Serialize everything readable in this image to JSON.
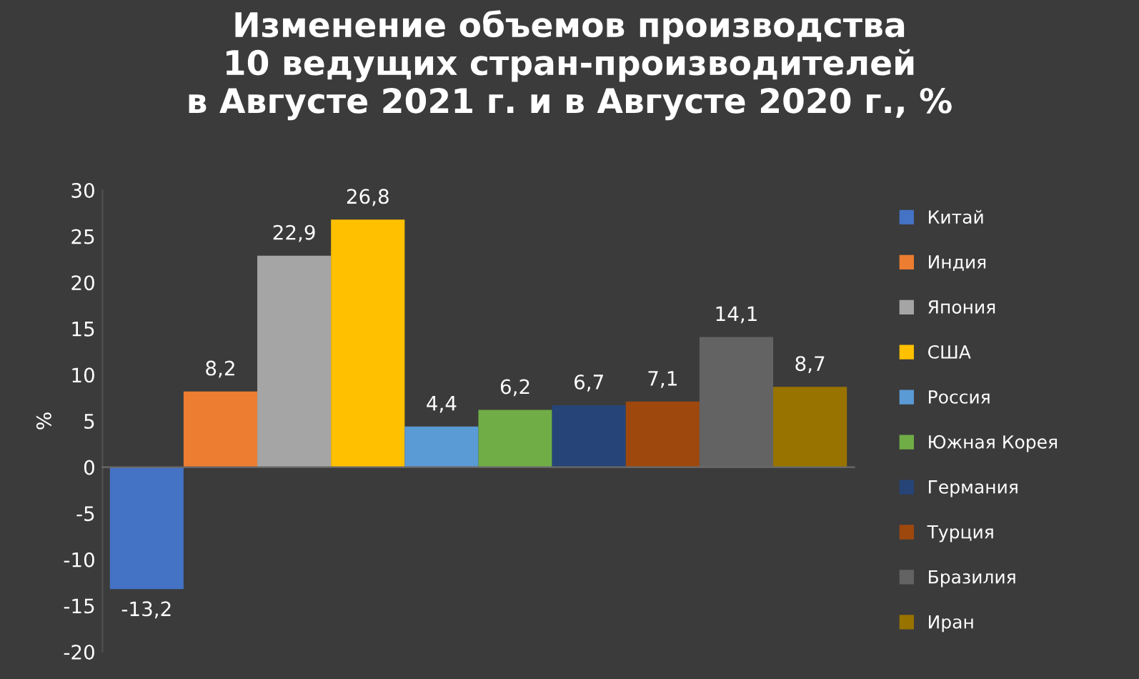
{
  "chart_data": {
    "type": "bar",
    "title": "Изменение объемов производства\n10 ведущих стран-производителей\nв Августе 2021 г. и в Августе 2020 г., %",
    "ylabel": "%",
    "categories": [
      null,
      null,
      null,
      null,
      null,
      null,
      null,
      null,
      null,
      null
    ],
    "series": [
      {
        "name": "Китай",
        "color": "#4472c4",
        "values": [
          -13.2,
          null,
          null,
          null,
          null,
          null,
          null,
          null,
          null,
          null
        ],
        "value_labels": [
          "-13,2",
          null,
          null,
          null,
          null,
          null,
          null,
          null,
          null,
          null
        ]
      },
      {
        "name": "Индия",
        "color": "#ed7d31",
        "values": [
          null,
          8.2,
          null,
          null,
          null,
          null,
          null,
          null,
          null,
          null
        ],
        "value_labels": [
          null,
          "8,2",
          null,
          null,
          null,
          null,
          null,
          null,
          null,
          null
        ]
      },
      {
        "name": "Япония",
        "color": "#a5a5a5",
        "values": [
          null,
          null,
          22.9,
          null,
          null,
          null,
          null,
          null,
          null,
          null
        ],
        "value_labels": [
          null,
          null,
          "22,9",
          null,
          null,
          null,
          null,
          null,
          null,
          null
        ]
      },
      {
        "name": "США",
        "color": "#ffc000",
        "values": [
          null,
          null,
          null,
          26.8,
          null,
          null,
          null,
          null,
          null,
          null
        ],
        "value_labels": [
          null,
          null,
          null,
          "26,8",
          null,
          null,
          null,
          null,
          null,
          null
        ]
      },
      {
        "name": "Россия",
        "color": "#5b9bd5",
        "values": [
          null,
          null,
          null,
          null,
          4.4,
          null,
          null,
          null,
          null,
          null
        ],
        "value_labels": [
          null,
          null,
          null,
          null,
          "4,4",
          null,
          null,
          null,
          null,
          null
        ]
      },
      {
        "name": "Южная Корея",
        "color": "#70ad47",
        "values": [
          null,
          null,
          null,
          null,
          null,
          6.2,
          null,
          null,
          null,
          null
        ],
        "value_labels": [
          null,
          null,
          null,
          null,
          null,
          "6,2",
          null,
          null,
          null,
          null
        ]
      },
      {
        "name": "Германия",
        "color": "#264478",
        "values": [
          null,
          null,
          null,
          null,
          null,
          null,
          6.7,
          null,
          null,
          null
        ],
        "value_labels": [
          null,
          null,
          null,
          null,
          null,
          null,
          "6,7",
          null,
          null,
          null
        ]
      },
      {
        "name": "Турция",
        "color": "#9e480e",
        "values": [
          null,
          null,
          null,
          null,
          null,
          null,
          null,
          7.1,
          null,
          null
        ],
        "value_labels": [
          null,
          null,
          null,
          null,
          null,
          null,
          null,
          "7,1",
          null,
          null
        ]
      },
      {
        "name": "Бразилия",
        "color": "#636363",
        "values": [
          null,
          null,
          null,
          null,
          null,
          null,
          null,
          null,
          14.1,
          null
        ],
        "value_labels": [
          null,
          null,
          null,
          null,
          null,
          null,
          null,
          null,
          "14,1",
          null
        ]
      },
      {
        "name": "Иран",
        "color": "#997300",
        "values": [
          null,
          null,
          null,
          null,
          null,
          null,
          null,
          null,
          null,
          8.7
        ],
        "value_labels": [
          null,
          null,
          null,
          null,
          null,
          null,
          null,
          null,
          null,
          "8,7"
        ]
      }
    ],
    "ylim": [
      -20,
      30
    ],
    "yticks": [
      -20,
      -15,
      -10,
      -5,
      0,
      5,
      10,
      15,
      20,
      25,
      30
    ],
    "tick_labels": "y",
    "legend": "right"
  }
}
